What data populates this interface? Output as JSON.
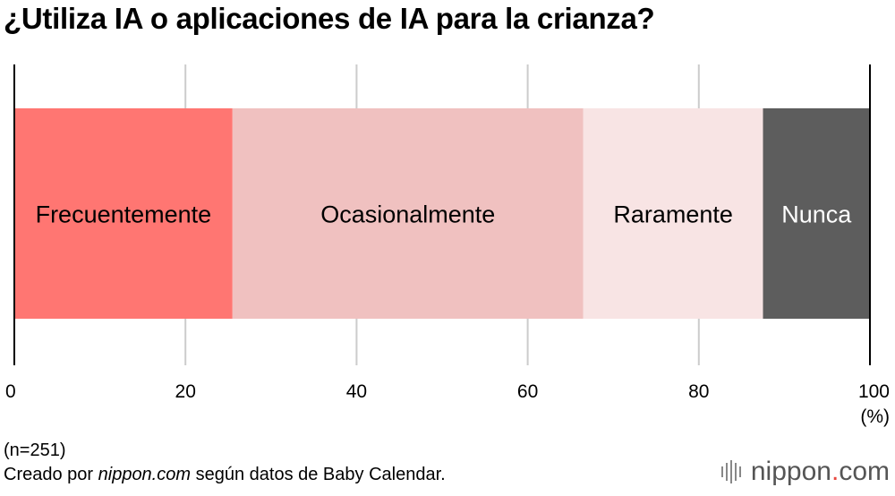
{
  "title": "¿Utiliza IA o aplicaciones de IA para la crianza?",
  "chart_data": {
    "type": "bar",
    "orientation": "horizontal-stacked",
    "title": "¿Utiliza IA o aplicaciones de IA para la crianza?",
    "xlim": [
      0,
      100
    ],
    "ticks": [
      "0",
      "20",
      "40",
      "60",
      "80",
      "100"
    ],
    "unit_label": "(%)",
    "grid": true,
    "segments": [
      {
        "label": "Frecuentemente",
        "value": 25.5,
        "color": "#ff7672",
        "text_color": "#000000"
      },
      {
        "label": "Ocasionalmente",
        "value": 41.0,
        "color": "#f0c1c0",
        "text_color": "#000000"
      },
      {
        "label": "Raramente",
        "value": 21.0,
        "color": "#f8e4e4",
        "text_color": "#000000"
      },
      {
        "label": "Nunca",
        "value": 12.5,
        "color": "#5d5d5d",
        "text_color": "#ffffff"
      }
    ]
  },
  "notes": {
    "sample": "(n=251)",
    "source_prefix": "Creado por ",
    "source_site": "nippon.com",
    "source_suffix": " según datos de Baby Calendar."
  },
  "logo": {
    "name": "nippon",
    "dot": ".",
    "tld": "com",
    "dot_color": "#e8483f"
  }
}
